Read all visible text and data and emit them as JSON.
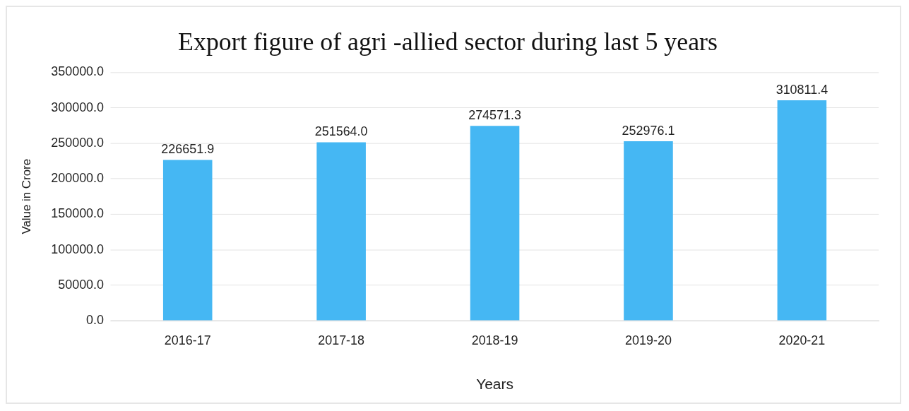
{
  "chart_data": {
    "type": "bar",
    "title": "Export figure of agri -allied sector during last 5 years",
    "xlabel": "Years",
    "ylabel": "Value in Crore",
    "categories": [
      "2016-17",
      "2017-18",
      "2018-19",
      "2019-20",
      "2020-21"
    ],
    "values": [
      226651.9,
      251564.0,
      274571.3,
      252976.1,
      310811.4
    ],
    "value_labels": [
      "226651.9",
      "251564.0",
      "274571.3",
      "252976.1",
      "310811.4"
    ],
    "color": "#45b7f3",
    "ylim": [
      0,
      350000
    ],
    "yticks": [
      {
        "value": 0,
        "label": "0.0"
      },
      {
        "value": 50000,
        "label": "50000.0"
      },
      {
        "value": 100000,
        "label": "100000.0"
      },
      {
        "value": 150000,
        "label": "150000.0"
      },
      {
        "value": 200000,
        "label": "200000.0"
      },
      {
        "value": 250000,
        "label": "250000.0"
      },
      {
        "value": 300000,
        "label": "300000.0"
      },
      {
        "value": 350000,
        "label": "350000.0"
      }
    ],
    "grid": "y",
    "legend": false
  }
}
